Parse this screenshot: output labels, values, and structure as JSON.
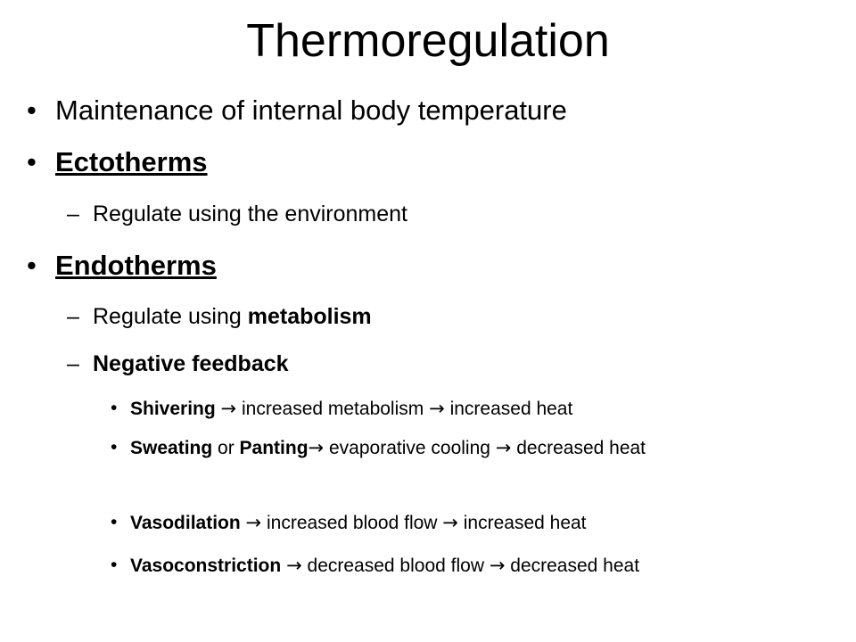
{
  "slide": {
    "title": "Thermoregulation",
    "bullet_glyph": "•",
    "dash_glyph": "–",
    "arrow_glyph": "→",
    "items": {
      "maintenance": "Maintenance of internal body temperature",
      "ectotherms": {
        "heading": "Ectotherms",
        "sub": "Regulate using the environment"
      },
      "endotherms": {
        "heading": "Endotherms",
        "sub1_prefix": "Regulate using ",
        "sub1_bold": "metabolism",
        "sub2": "Negative feedback",
        "examples": {
          "shivering": {
            "term": "Shivering",
            "step1": "increased metabolism",
            "step2": "increased heat"
          },
          "sweating": {
            "term1": "Sweating",
            "joiner": " or ",
            "term2": "Panting",
            "step1": "evaporative cooling",
            "step2": "decreased heat"
          },
          "vasodilation": {
            "term": "Vasodilation",
            "step1": "increased blood flow",
            "step2": "increased heat"
          },
          "vasoconstriction": {
            "term": "Vasoconstriction",
            "step1": "decreased blood flow",
            "step2": "decreased heat"
          }
        }
      }
    }
  }
}
